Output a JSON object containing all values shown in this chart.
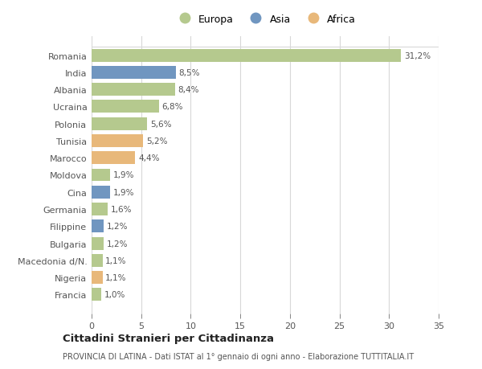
{
  "countries": [
    "Romania",
    "India",
    "Albania",
    "Ucraina",
    "Polonia",
    "Tunisia",
    "Marocco",
    "Moldova",
    "Cina",
    "Germania",
    "Filippine",
    "Bulgaria",
    "Macedonia d/N.",
    "Nigeria",
    "Francia"
  ],
  "values": [
    31.2,
    8.5,
    8.4,
    6.8,
    5.6,
    5.2,
    4.4,
    1.9,
    1.9,
    1.6,
    1.2,
    1.2,
    1.1,
    1.1,
    1.0
  ],
  "labels": [
    "31,2%",
    "8,5%",
    "8,4%",
    "6,8%",
    "5,6%",
    "5,2%",
    "4,4%",
    "1,9%",
    "1,9%",
    "1,6%",
    "1,2%",
    "1,2%",
    "1,1%",
    "1,1%",
    "1,0%"
  ],
  "continents": [
    "Europa",
    "Asia",
    "Europa",
    "Europa",
    "Europa",
    "Africa",
    "Africa",
    "Europa",
    "Asia",
    "Europa",
    "Asia",
    "Europa",
    "Europa",
    "Africa",
    "Europa"
  ],
  "colors": {
    "Europa": "#b5c98e",
    "Asia": "#7096c0",
    "Africa": "#e8b87a"
  },
  "background_color": "#ffffff",
  "plot_bg_color": "#ffffff",
  "grid_color": "#d8d8d8",
  "text_color": "#555555",
  "title1": "Cittadini Stranieri per Cittadinanza",
  "title2": "PROVINCIA DI LATINA - Dati ISTAT al 1° gennaio di ogni anno - Elaborazione TUTTITALIA.IT",
  "legend_order": [
    "Europa",
    "Asia",
    "Africa"
  ],
  "xlim": [
    0,
    35
  ],
  "xticks": [
    0,
    5,
    10,
    15,
    20,
    25,
    30,
    35
  ]
}
